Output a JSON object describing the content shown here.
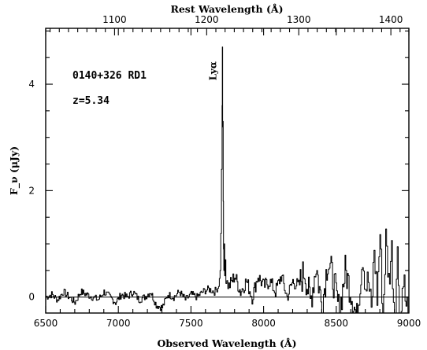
{
  "chart_data": {
    "type": "line",
    "title": "",
    "xlabel": "Observed Wavelength (Å)",
    "x2label": "Rest Wavelength (Å)",
    "ylabel": "F_ν (μJy)",
    "xlim": [
      6500,
      9000
    ],
    "ylim": [
      -0.3,
      5.05
    ],
    "x_ticks": [
      6500,
      7000,
      7500,
      8000,
      8500,
      9000
    ],
    "y_ticks": [
      0,
      2,
      4
    ],
    "x2_ticks": [
      1100,
      1200,
      1300,
      1400
    ],
    "redshift": 5.34,
    "annotations": {
      "object": "0140+326 RD1",
      "redshift": "z=5.34",
      "line_label": "Lyα",
      "line_x": 7718
    },
    "grid": false,
    "legend": "none",
    "series": [
      {
        "x": [
          6500,
          6540,
          6580,
          6620,
          6660,
          6700,
          6740,
          6780,
          6820,
          6860,
          6900,
          6940,
          6980,
          7020,
          7060,
          7100,
          7140,
          7180,
          7220,
          7260,
          7300,
          7340,
          7380,
          7420,
          7460,
          7500,
          7540,
          7580,
          7620,
          7660,
          7690,
          7700,
          7705,
          7710,
          7714,
          7716,
          7718,
          7720,
          7722,
          7724,
          7726,
          7728,
          7732,
          7736,
          7740,
          7760,
          7800,
          7840,
          7880,
          7920,
          7960,
          8000,
          8040,
          8080,
          8120,
          8160,
          8200,
          8240,
          8280,
          8320,
          8360,
          8400,
          8440,
          8480,
          8520,
          8560,
          8600,
          8640,
          8680,
          8700,
          8720,
          8740,
          8760,
          8780,
          8800,
          8820,
          8840,
          8860,
          8880,
          8900,
          8920,
          8940,
          8960,
          8980,
          9000
        ],
        "y": [
          0.0,
          0.05,
          -0.05,
          0.1,
          0.0,
          -0.1,
          0.1,
          0.05,
          0.0,
          -0.05,
          0.1,
          0.0,
          -0.1,
          0.05,
          0.0,
          0.1,
          -0.05,
          0.0,
          0.1,
          -0.15,
          -0.2,
          0.05,
          0.0,
          0.1,
          -0.05,
          0.05,
          0.0,
          0.1,
          0.15,
          0.1,
          0.2,
          0.5,
          1.2,
          2.4,
          3.6,
          4.7,
          3.2,
          3.3,
          1.8,
          0.9,
          0.5,
          1.0,
          0.4,
          0.7,
          0.3,
          0.2,
          0.4,
          0.1,
          0.3,
          0.0,
          0.4,
          0.2,
          0.3,
          0.1,
          0.4,
          0.0,
          0.3,
          0.2,
          0.5,
          -0.1,
          0.6,
          -0.2,
          0.7,
          0.3,
          -0.3,
          0.5,
          0.1,
          -0.4,
          0.8,
          0.2,
          0.3,
          -0.3,
          0.9,
          0.0,
          1.2,
          -0.4,
          1.1,
          0.3,
          0.9,
          -0.5,
          0.8,
          -0.6,
          0.5,
          -0.3,
          0.1
        ]
      }
    ]
  }
}
